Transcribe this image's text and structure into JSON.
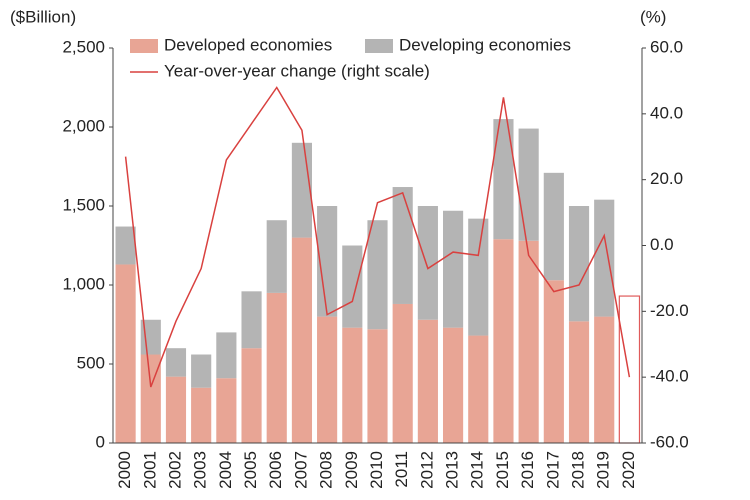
{
  "chart_data": {
    "type": "bar",
    "y_unit_label": "($Billion)",
    "y2_unit_label": "(%)",
    "categories": [
      "2000",
      "2001",
      "2002",
      "2003",
      "2004",
      "2005",
      "2006",
      "2007",
      "2008",
      "2009",
      "2010",
      "2011",
      "2012",
      "2013",
      "2014",
      "2015",
      "2016",
      "2017",
      "2018",
      "2019",
      "2020"
    ],
    "series": [
      {
        "name": "Developed economies",
        "color": "#e8a595",
        "values": [
          1130,
          560,
          420,
          350,
          410,
          600,
          950,
          1300,
          800,
          730,
          720,
          880,
          780,
          730,
          680,
          1290,
          1280,
          1030,
          770,
          800,
          null
        ]
      },
      {
        "name": "Developing economies",
        "color": "#b4b4b4",
        "values": [
          240,
          220,
          180,
          210,
          290,
          360,
          460,
          600,
          700,
          520,
          690,
          740,
          720,
          740,
          740,
          760,
          710,
          680,
          730,
          740,
          null
        ]
      },
      {
        "color": "#e05a5a",
        "fill": "none",
        "values": [
          null,
          null,
          null,
          null,
          null,
          null,
          null,
          null,
          null,
          null,
          null,
          null,
          null,
          null,
          null,
          null,
          null,
          null,
          null,
          null,
          930
        ]
      },
      {
        "name": "Year-over-year change (right scale)",
        "type": "line",
        "axis": "y2",
        "color": "#d9413f",
        "values": [
          27,
          -43,
          -23,
          -7,
          26,
          37,
          48,
          35,
          -21,
          -17,
          13,
          16,
          -7,
          -2,
          -3,
          45,
          -3,
          -14,
          -12,
          3,
          -40
        ]
      }
    ],
    "stacked": true,
    "ylim": [
      0,
      2500
    ],
    "yticks": [
      0,
      500,
      {
        "value": 1000,
        "label": "1,000"
      },
      {
        "value": 1500,
        "label": "1,500"
      },
      {
        "value": 2000,
        "label": "2,000"
      },
      {
        "value": 2500,
        "label": "2,500"
      }
    ],
    "y2lim": [
      -60,
      60
    ],
    "y2ticks": [
      {
        "value": -60,
        "label": "-60.0"
      },
      {
        "value": -40,
        "label": "-40.0"
      },
      {
        "value": -20,
        "label": "-20.0"
      },
      {
        "value": 0,
        "label": "0.0"
      },
      {
        "value": 20,
        "label": "20.0"
      },
      {
        "value": 40,
        "label": "40.0"
      },
      {
        "value": 60,
        "label": "60.0"
      }
    ]
  }
}
